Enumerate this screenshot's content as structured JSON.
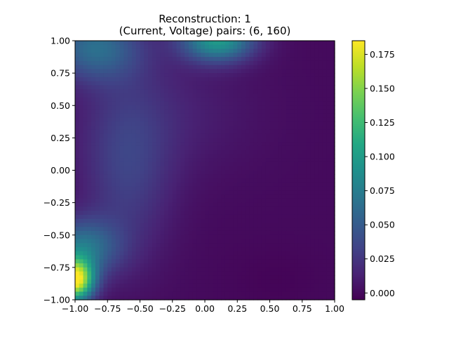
{
  "chart_data": {
    "type": "heatmap",
    "title": "Reconstruction: 1",
    "subtitle": "(Current, Voltage) pairs: (6, 160)",
    "xlabel": "",
    "ylabel": "",
    "xlim": [
      -1.0,
      1.0
    ],
    "ylim": [
      -1.0,
      1.0
    ],
    "x_ticks": [
      "−1.00",
      "−0.75",
      "−0.50",
      "−0.25",
      "0.00",
      "0.25",
      "0.50",
      "0.75",
      "1.00"
    ],
    "y_ticks": [
      "1.00",
      "0.75",
      "0.50",
      "0.25",
      "0.00",
      "−0.25",
      "−0.50",
      "−0.75",
      "−1.00"
    ],
    "colormap": "viridis",
    "colorbar": {
      "min": -0.005,
      "max": 0.185,
      "ticks": [
        "0.175",
        "0.150",
        "0.125",
        "0.100",
        "0.075",
        "0.050",
        "0.025",
        "0.000"
      ]
    },
    "grid": false,
    "features": [
      {
        "x": -1.0,
        "y": -0.85,
        "value": 0.18
      },
      {
        "x": -0.95,
        "y": -0.6,
        "value": 0.12
      },
      {
        "x": 0.1,
        "y": 1.0,
        "value": 0.095
      },
      {
        "x": -0.85,
        "y": 0.95,
        "value": 0.06
      },
      {
        "x": -0.6,
        "y": 0.0,
        "value": 0.03
      }
    ]
  }
}
